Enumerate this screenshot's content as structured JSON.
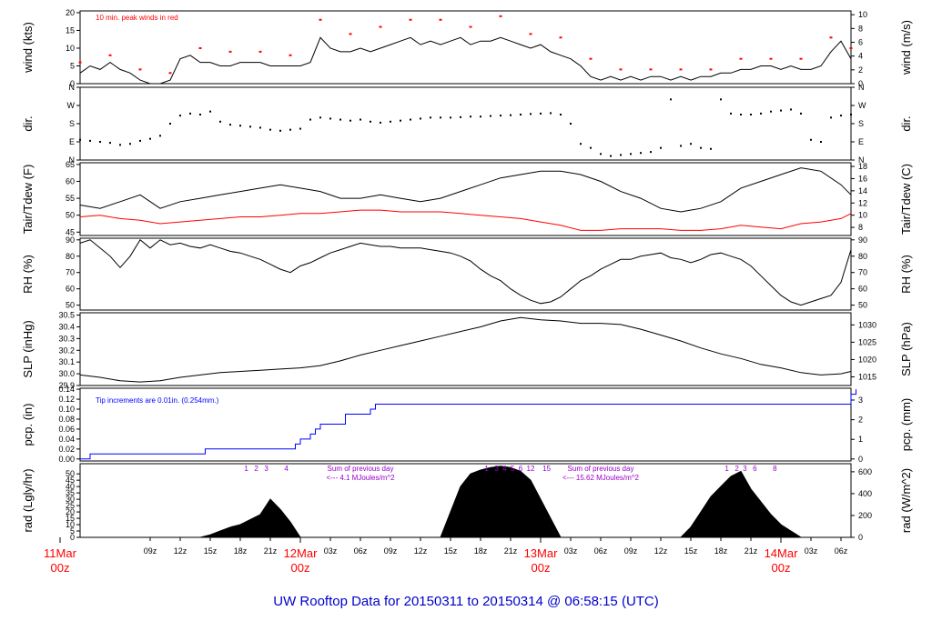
{
  "page": {
    "title": "UW Rooftop Data for 20150311  to  20150314 @ 06:58:15  (UTC)",
    "colors": {
      "wind_peak": "#ff0000",
      "tdew": "#ff0000",
      "pcp": "#0000ff",
      "annotation": "#9900cc",
      "date_label": "#ff0000",
      "title": "#0000cc",
      "trace": "#000000"
    }
  },
  "time_axis": {
    "start_hour": 2,
    "end_hour": 79,
    "hour_labels": [
      {
        "h": 9,
        "label": "09z"
      },
      {
        "h": 12,
        "label": "12z"
      },
      {
        "h": 15,
        "label": "15z"
      },
      {
        "h": 18,
        "label": "18z"
      },
      {
        "h": 21,
        "label": "21z"
      },
      {
        "h": 27,
        "label": "03z"
      },
      {
        "h": 30,
        "label": "06z"
      },
      {
        "h": 33,
        "label": "09z"
      },
      {
        "h": 36,
        "label": "12z"
      },
      {
        "h": 39,
        "label": "15z"
      },
      {
        "h": 42,
        "label": "18z"
      },
      {
        "h": 45,
        "label": "21z"
      },
      {
        "h": 51,
        "label": "03z"
      },
      {
        "h": 54,
        "label": "06z"
      },
      {
        "h": 57,
        "label": "09z"
      },
      {
        "h": 60,
        "label": "12z"
      },
      {
        "h": 63,
        "label": "15z"
      },
      {
        "h": 66,
        "label": "18z"
      },
      {
        "h": 69,
        "label": "21z"
      },
      {
        "h": 75,
        "label": "03z"
      },
      {
        "h": 78,
        "label": "06z"
      }
    ],
    "day_labels": [
      {
        "h": 0,
        "date": "11Mar",
        "time": "00z"
      },
      {
        "h": 24,
        "date": "12Mar",
        "time": "00z"
      },
      {
        "h": 48,
        "date": "13Mar",
        "time": "00z"
      },
      {
        "h": 72,
        "date": "14Mar",
        "time": "00z"
      }
    ]
  },
  "panels": {
    "wind": {
      "ylabel_left": "wind (kts)",
      "ylabel_right": "wind (m/s)",
      "left_ticks": [
        "0",
        "5",
        "10",
        "15",
        "20"
      ],
      "right_ticks": [
        "0",
        "2",
        "4",
        "6",
        "8",
        "10"
      ],
      "annotation": "10 min. peak winds in red"
    },
    "dir": {
      "ylabel_left": "dir.",
      "ylabel_right": "dir.",
      "ticks": [
        "N",
        "E",
        "S",
        "W",
        "N"
      ]
    },
    "temp": {
      "ylabel_left": "Tair/Tdew (F)",
      "ylabel_right": "Tair/Tdew (C)",
      "left_ticks": [
        "45",
        "50",
        "55",
        "60",
        "65"
      ],
      "right_ticks": [
        "8",
        "10",
        "12",
        "14",
        "16",
        "18"
      ]
    },
    "rh": {
      "ylabel_left": "RH (%)",
      "ylabel_right": "RH (%)",
      "ticks": [
        "50",
        "60",
        "70",
        "80",
        "90"
      ]
    },
    "slp": {
      "ylabel_left": "SLP (inHg)",
      "ylabel_right": "SLP (hPa)",
      "left_ticks": [
        "29.9",
        "30.0",
        "30.1",
        "30.2",
        "30.3",
        "30.4",
        "30.5"
      ],
      "right_ticks": [
        "1015",
        "1020",
        "1025",
        "1030"
      ]
    },
    "pcp": {
      "ylabel_left": "pcp. (in)",
      "ylabel_right": "pcp. (mm)",
      "left_ticks": [
        "0.00",
        "0.02",
        "0.04",
        "0.06",
        "0.08",
        "0.10",
        "0.12",
        "0.14"
      ],
      "right_ticks": [
        "0",
        "1",
        "2",
        "3"
      ],
      "annotation": "Tip increments are 0.01in. (0.254mm.)"
    },
    "rad": {
      "ylabel_left": "rad (Lgly/hr)",
      "ylabel_right": "rad (W/m^2)",
      "left_ticks": [
        "0",
        "5",
        "10",
        "15",
        "20",
        "25",
        "30",
        "35",
        "40",
        "45",
        "50"
      ],
      "right_ticks": [
        "0",
        "200",
        "400",
        "600"
      ],
      "sum_label": "Sum of previous day",
      "sums": [
        {
          "h": 30,
          "value": "<--- 4.1 MJoules/m^2"
        },
        {
          "h": 54,
          "value": "<--- 15.62 MJoules/m^2"
        }
      ],
      "hour_marks": [
        {
          "h": 18.6,
          "label": "1"
        },
        {
          "h": 19.6,
          "label": "2"
        },
        {
          "h": 20.6,
          "label": "3"
        },
        {
          "h": 22.6,
          "label": "4"
        },
        {
          "h": 42.6,
          "label": "1"
        },
        {
          "h": 43.6,
          "label": "3"
        },
        {
          "h": 44.4,
          "label": "4"
        },
        {
          "h": 45.2,
          "label": "5"
        },
        {
          "h": 46.0,
          "label": "6"
        },
        {
          "h": 47.0,
          "label": "12"
        },
        {
          "h": 48.6,
          "label": "15"
        },
        {
          "h": 66.6,
          "label": "1"
        },
        {
          "h": 67.6,
          "label": "2"
        },
        {
          "h": 68.4,
          "label": "3"
        },
        {
          "h": 69.4,
          "label": "6"
        },
        {
          "h": 71.4,
          "label": "8"
        }
      ]
    }
  },
  "chart_data": {
    "type": "line",
    "x_unit": "hours since 11Mar 00z",
    "series": [
      {
        "panel": "wind",
        "name": "wind",
        "x": [
          2,
          3,
          4,
          5,
          6,
          7,
          8,
          9,
          10,
          11,
          12,
          13,
          14,
          15,
          16,
          17,
          18,
          19,
          20,
          21,
          22,
          23,
          24,
          25,
          26,
          27,
          28,
          29,
          30,
          31,
          32,
          33,
          34,
          35,
          36,
          37,
          38,
          39,
          40,
          41,
          42,
          43,
          44,
          45,
          46,
          47,
          48,
          49,
          50,
          51,
          52,
          53,
          54,
          55,
          56,
          57,
          58,
          59,
          60,
          61,
          62,
          63,
          64,
          65,
          66,
          67,
          68,
          69,
          70,
          71,
          72,
          73,
          74,
          75,
          76,
          77,
          78,
          79
        ],
        "values": [
          3,
          5,
          4,
          6,
          4,
          3,
          1,
          0,
          0,
          1,
          7,
          8,
          6,
          6,
          5,
          5,
          6,
          6,
          6,
          5,
          5,
          5,
          5,
          6,
          13,
          10,
          9,
          9,
          10,
          9,
          10,
          11,
          12,
          13,
          11,
          12,
          11,
          12,
          13,
          11,
          12,
          12,
          13,
          12,
          11,
          10,
          11,
          9,
          8,
          7,
          5,
          2,
          1,
          2,
          1,
          2,
          1,
          2,
          2,
          1,
          2,
          1,
          2,
          2,
          3,
          3,
          4,
          4,
          5,
          5,
          4,
          5,
          4,
          4,
          5,
          9,
          12,
          7
        ]
      },
      {
        "panel": "wind",
        "name": "10 min. peak winds",
        "x": [
          2,
          5,
          8,
          11,
          14,
          17,
          20,
          23,
          26,
          29,
          32,
          35,
          38,
          41,
          44,
          47,
          50,
          53,
          56,
          59,
          62,
          65,
          68,
          71,
          74,
          77,
          79
        ],
        "values": [
          6,
          8,
          4,
          3,
          10,
          9,
          9,
          8,
          18,
          14,
          16,
          18,
          18,
          16,
          19,
          14,
          13,
          7,
          4,
          4,
          4,
          4,
          7,
          7,
          7,
          13,
          10
        ]
      },
      {
        "panel": "dir",
        "name": "direction",
        "x": [
          2,
          3,
          4,
          5,
          6,
          7,
          8,
          9,
          10,
          11,
          12,
          13,
          14,
          15,
          16,
          17,
          18,
          19,
          20,
          21,
          22,
          23,
          24,
          25,
          26,
          27,
          28,
          29,
          30,
          31,
          32,
          33,
          34,
          35,
          36,
          37,
          38,
          39,
          40,
          41,
          42,
          43,
          44,
          45,
          46,
          47,
          48,
          49,
          50,
          51,
          52,
          53,
          54,
          55,
          56,
          57,
          58,
          59,
          60,
          61,
          62,
          63,
          64,
          65,
          66,
          67,
          68,
          69,
          70,
          71,
          72,
          73,
          74,
          75,
          76,
          77,
          78,
          79
        ],
        "values": [
          100,
          95,
          90,
          85,
          75,
          80,
          95,
          105,
          120,
          180,
          220,
          230,
          225,
          240,
          190,
          175,
          170,
          165,
          160,
          150,
          145,
          150,
          155,
          200,
          210,
          205,
          200,
          195,
          200,
          190,
          185,
          190,
          195,
          200,
          205,
          210,
          210,
          210,
          212,
          215,
          215,
          218,
          220,
          222,
          225,
          228,
          230,
          232,
          225,
          180,
          80,
          60,
          30,
          20,
          25,
          30,
          35,
          40,
          60,
          300,
          70,
          80,
          60,
          55,
          300,
          230,
          225,
          225,
          230,
          240,
          245,
          250,
          230,
          100,
          90,
          210,
          220,
          225
        ]
      },
      {
        "panel": "temp",
        "name": "Tair",
        "x": [
          2,
          4,
          6,
          8,
          10,
          12,
          14,
          16,
          18,
          20,
          22,
          24,
          26,
          28,
          30,
          32,
          34,
          36,
          38,
          40,
          42,
          44,
          46,
          48,
          50,
          52,
          54,
          56,
          58,
          60,
          62,
          64,
          66,
          68,
          70,
          72,
          74,
          76,
          78,
          79
        ],
        "values": [
          53,
          52,
          54,
          56,
          52,
          54,
          55,
          56,
          57,
          58,
          59,
          58,
          57,
          55,
          55,
          56,
          55,
          54,
          55,
          57,
          59,
          61,
          62,
          63,
          63,
          62,
          60,
          57,
          55,
          52,
          51,
          52,
          54,
          58,
          60,
          62,
          64,
          63,
          59,
          56
        ]
      },
      {
        "panel": "temp",
        "name": "Tdew",
        "x": [
          2,
          4,
          6,
          8,
          10,
          12,
          14,
          16,
          18,
          20,
          22,
          24,
          26,
          28,
          30,
          32,
          34,
          36,
          38,
          40,
          42,
          44,
          46,
          48,
          50,
          52,
          54,
          56,
          58,
          60,
          62,
          64,
          66,
          68,
          70,
          72,
          74,
          76,
          78,
          79
        ],
        "values": [
          49.5,
          50,
          49,
          48.5,
          47.5,
          48,
          48.5,
          49,
          49.5,
          49.5,
          50,
          50.5,
          50.5,
          51,
          51.5,
          51.5,
          51,
          51,
          51,
          50.5,
          50,
          49.5,
          49,
          48,
          47,
          45.5,
          45.5,
          46,
          46,
          46,
          45.5,
          45.5,
          46,
          47,
          46.5,
          46,
          47.5,
          48,
          49,
          50.5
        ]
      },
      {
        "panel": "rh",
        "name": "RH",
        "x": [
          2,
          3,
          4,
          5,
          6,
          7,
          8,
          9,
          10,
          11,
          12,
          13,
          14,
          15,
          16,
          17,
          18,
          19,
          20,
          21,
          22,
          23,
          24,
          25,
          26,
          27,
          28,
          29,
          30,
          31,
          32,
          33,
          34,
          35,
          36,
          37,
          38,
          39,
          40,
          41,
          42,
          43,
          44,
          45,
          46,
          47,
          48,
          49,
          50,
          51,
          52,
          53,
          54,
          55,
          56,
          57,
          58,
          59,
          60,
          61,
          62,
          63,
          64,
          65,
          66,
          67,
          68,
          69,
          70,
          71,
          72,
          73,
          74,
          75,
          76,
          77,
          78,
          79
        ],
        "values": [
          88,
          90,
          85,
          80,
          73,
          80,
          90,
          85,
          90,
          87,
          88,
          86,
          85,
          87,
          85,
          83,
          82,
          80,
          78,
          75,
          72,
          70,
          74,
          76,
          79,
          82,
          84,
          86,
          88,
          87,
          86,
          86,
          85,
          85,
          85,
          84,
          83,
          82,
          80,
          77,
          72,
          68,
          65,
          60,
          56,
          53,
          51,
          52,
          55,
          60,
          65,
          68,
          72,
          75,
          78,
          78,
          80,
          81,
          82,
          79,
          78,
          76,
          78,
          81,
          82,
          80,
          78,
          74,
          68,
          62,
          56,
          52,
          50,
          52,
          54,
          56,
          64,
          84
        ]
      },
      {
        "panel": "slp",
        "name": "SLP (inHg)",
        "x": [
          2,
          4,
          6,
          8,
          10,
          12,
          14,
          16,
          18,
          20,
          22,
          24,
          26,
          28,
          30,
          32,
          34,
          36,
          38,
          40,
          42,
          44,
          46,
          48,
          50,
          52,
          54,
          56,
          58,
          60,
          62,
          64,
          66,
          68,
          70,
          72,
          74,
          76,
          78,
          79
        ],
        "values": [
          29.99,
          29.97,
          29.94,
          29.93,
          29.94,
          29.97,
          29.99,
          30.01,
          30.02,
          30.03,
          30.04,
          30.05,
          30.07,
          30.11,
          30.16,
          30.2,
          30.24,
          30.28,
          30.32,
          30.36,
          30.4,
          30.45,
          30.48,
          30.46,
          30.45,
          30.43,
          30.43,
          30.42,
          30.38,
          30.33,
          30.28,
          30.22,
          30.17,
          30.13,
          30.08,
          30.05,
          30.01,
          29.99,
          30.0,
          30.02
        ]
      },
      {
        "panel": "pcp",
        "name": "pcp. (in)",
        "x": [
          2,
          3,
          14,
          14.5,
          23,
          23.5,
          24,
          25,
          25.5,
          26,
          28,
          28.5,
          31,
          31.5,
          79,
          79.5
        ],
        "values": [
          0.0,
          0.01,
          0.01,
          0.02,
          0.02,
          0.03,
          0.04,
          0.05,
          0.06,
          0.07,
          0.07,
          0.09,
          0.1,
          0.11,
          0.13,
          0.14
        ]
      },
      {
        "panel": "rad",
        "name": "rad (Lgly/hr)",
        "x": [
          14,
          15,
          16,
          17,
          18,
          19,
          20,
          21,
          22,
          23,
          24,
          38,
          39,
          40,
          41,
          42,
          43,
          44,
          45,
          46,
          47,
          48,
          49,
          50,
          62,
          63,
          64,
          65,
          66,
          67,
          68,
          69,
          70,
          71,
          72,
          73,
          74
        ],
        "values": [
          0,
          2,
          5,
          8,
          10,
          14,
          18,
          30,
          22,
          12,
          0,
          0,
          20,
          40,
          50,
          53,
          55,
          56,
          55,
          52,
          45,
          30,
          15,
          0,
          0,
          8,
          20,
          32,
          40,
          48,
          52,
          38,
          28,
          18,
          10,
          5,
          0
        ]
      }
    ]
  }
}
